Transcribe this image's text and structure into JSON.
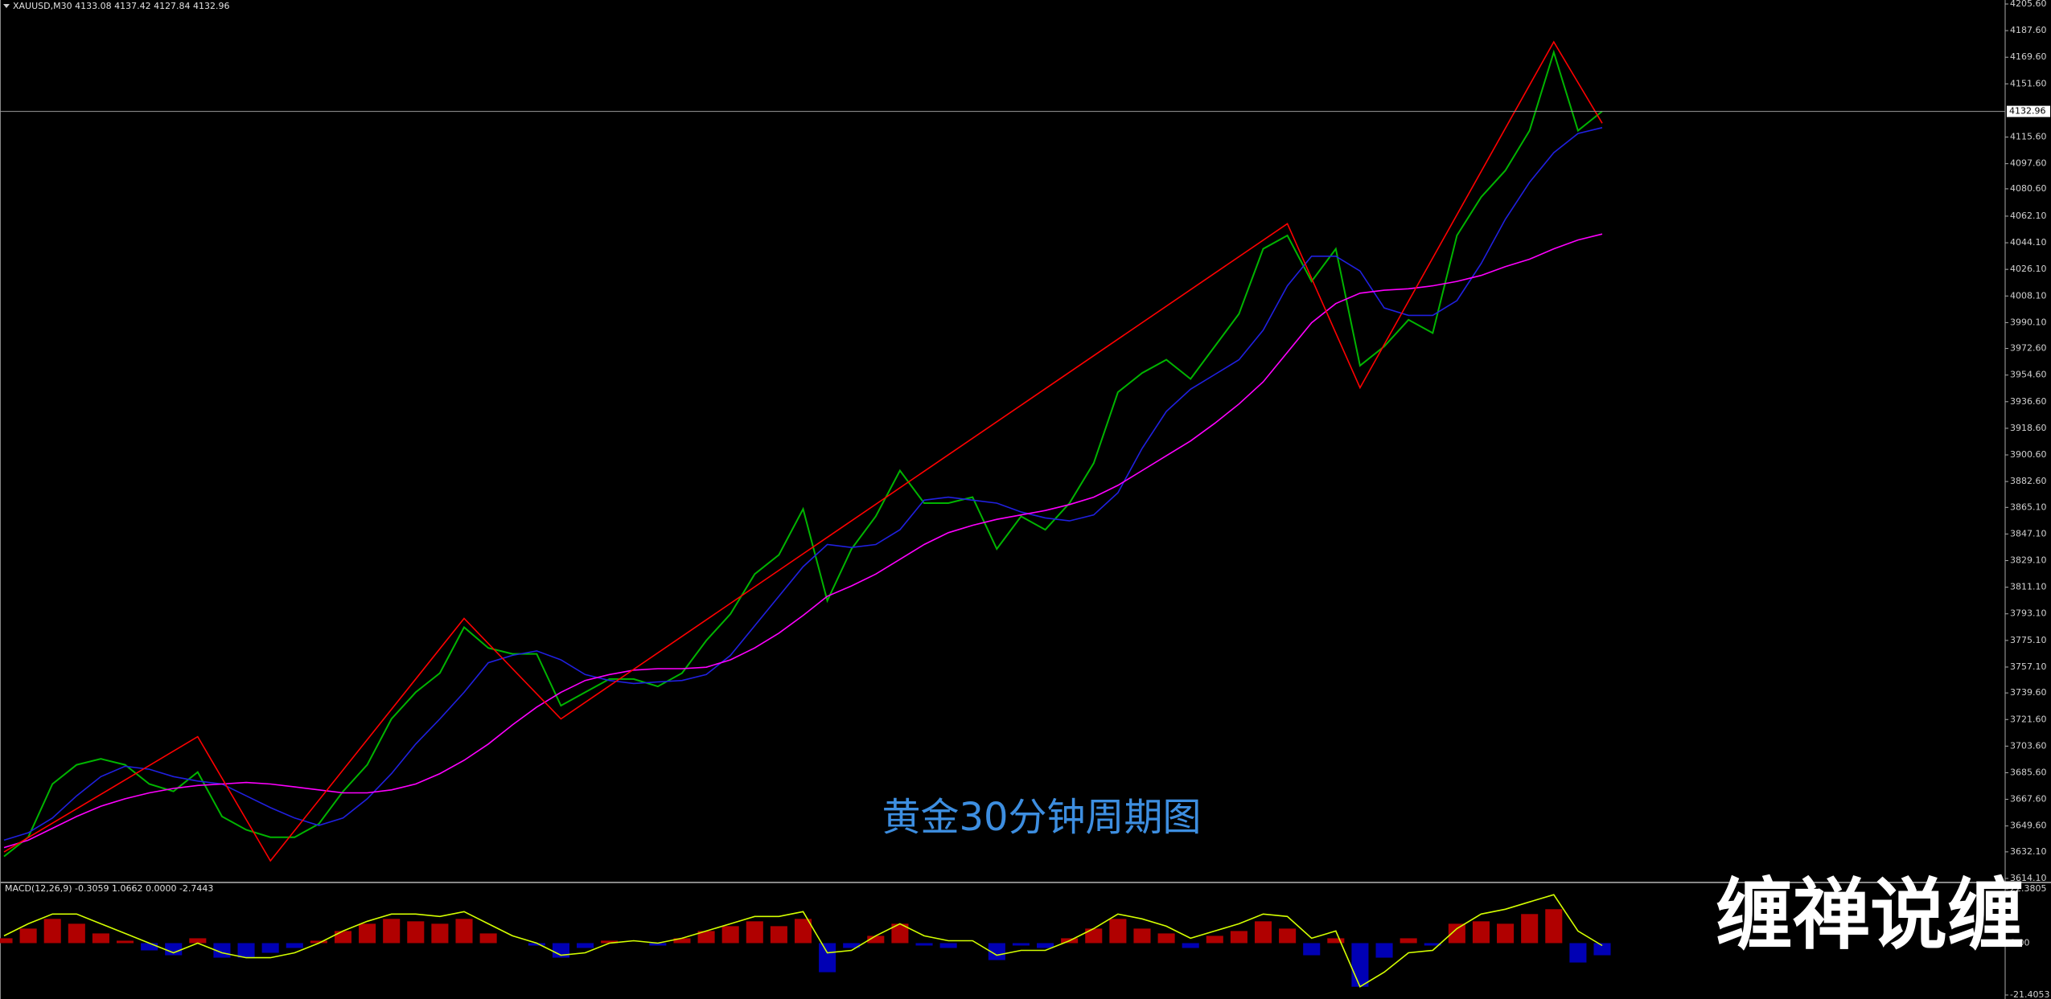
{
  "chart_data": [
    {
      "type": "line",
      "title": "XAUUSD,M30  4133.08 4137.42 4127.84 4132.96",
      "annotation": "黄金30分钟周期图",
      "ylim": [
        3614.1,
        4205.6
      ],
      "yticks": [
        {
          "value": 4205.6,
          "label": "4205.60"
        },
        {
          "value": 4187.6,
          "label": "4187.60"
        },
        {
          "value": 4169.6,
          "label": "4169.60"
        },
        {
          "value": 4151.6,
          "label": "4151.60"
        },
        {
          "value": 4115.6,
          "label": "4115.60"
        },
        {
          "value": 4097.6,
          "label": "4097.60"
        },
        {
          "value": 4080.6,
          "label": "4080.60"
        },
        {
          "value": 4062.1,
          "label": "4062.10"
        },
        {
          "value": 4044.1,
          "label": "4044.10"
        },
        {
          "value": 4026.1,
          "label": "4026.10"
        },
        {
          "value": 4008.1,
          "label": "4008.10"
        },
        {
          "value": 3990.1,
          "label": "3990.10"
        },
        {
          "value": 3972.6,
          "label": "3972.60"
        },
        {
          "value": 3954.6,
          "label": "3954.60"
        },
        {
          "value": 3936.6,
          "label": "3936.60"
        },
        {
          "value": 3918.6,
          "label": "3918.60"
        },
        {
          "value": 3900.6,
          "label": "3900.60"
        },
        {
          "value": 3882.6,
          "label": "3882.60"
        },
        {
          "value": 3865.1,
          "label": "3865.10"
        },
        {
          "value": 3847.1,
          "label": "3847.10"
        },
        {
          "value": 3829.1,
          "label": "3829.10"
        },
        {
          "value": 3811.1,
          "label": "3811.10"
        },
        {
          "value": 3793.1,
          "label": "3793.10"
        },
        {
          "value": 3775.1,
          "label": "3775.10"
        },
        {
          "value": 3757.1,
          "label": "3757.10"
        },
        {
          "value": 3739.6,
          "label": "3739.60"
        },
        {
          "value": 3721.6,
          "label": "3721.60"
        },
        {
          "value": 3703.6,
          "label": "3703.60"
        },
        {
          "value": 3685.6,
          "label": "3685.60"
        },
        {
          "value": 3667.6,
          "label": "3667.60"
        },
        {
          "value": 3649.6,
          "label": "3649.60"
        },
        {
          "value": 3632.1,
          "label": "3632.10"
        },
        {
          "value": 3614.1,
          "label": "3614.10"
        }
      ],
      "last_price": 4132.96,
      "series": [
        {
          "color": "#00b400",
          "values": [
            3629,
            3642,
            3678,
            3691,
            3695,
            3691,
            3678,
            3673,
            3686,
            3656,
            3647,
            3642,
            3642,
            3651,
            3673,
            3691,
            3722,
            3740,
            3753,
            3784,
            3770,
            3766,
            3766,
            3731,
            3740,
            3749,
            3749,
            3744,
            3753,
            3775,
            3793,
            3820,
            3833,
            3864,
            3802,
            3837,
            3859,
            3890,
            3868,
            3868,
            3872,
            3837,
            3859,
            3850,
            3868,
            3895,
            3943,
            3956,
            3965,
            3952,
            3974,
            3996,
            4040,
            4049,
            4018,
            4040,
            3961,
            3974,
            3992,
            3983,
            4049,
            4075,
            4093,
            4120,
            4173,
            4120,
            4133
          ]
        },
        {
          "color": "#2020e0",
          "values": [
            3640,
            3645,
            3655,
            3670,
            3683,
            3690,
            3688,
            3683,
            3680,
            3678,
            3670,
            3662,
            3655,
            3650,
            3655,
            3668,
            3685,
            3705,
            3722,
            3740,
            3760,
            3765,
            3768,
            3762,
            3752,
            3748,
            3746,
            3747,
            3748,
            3752,
            3765,
            3785,
            3805,
            3825,
            3840,
            3838,
            3840,
            3850,
            3870,
            3872,
            3870,
            3868,
            3862,
            3858,
            3856,
            3860,
            3875,
            3905,
            3930,
            3945,
            3955,
            3965,
            3985,
            4015,
            4035,
            4035,
            4025,
            4000,
            3995,
            3995,
            4005,
            4030,
            4060,
            4085,
            4105,
            4118,
            4122
          ]
        },
        {
          "color": "#ff00ff",
          "values": [
            3635,
            3640,
            3648,
            3656,
            3663,
            3668,
            3672,
            3675,
            3677,
            3678,
            3679,
            3678,
            3676,
            3674,
            3672,
            3672,
            3674,
            3678,
            3685,
            3694,
            3705,
            3718,
            3730,
            3740,
            3748,
            3752,
            3755,
            3756,
            3756,
            3757,
            3762,
            3770,
            3780,
            3792,
            3805,
            3812,
            3820,
            3830,
            3840,
            3848,
            3853,
            3857,
            3860,
            3863,
            3867,
            3872,
            3880,
            3890,
            3900,
            3910,
            3922,
            3935,
            3950,
            3970,
            3990,
            4003,
            4010,
            4012,
            4013,
            4015,
            4018,
            4022,
            4028,
            4033,
            4040,
            4046,
            4050
          ]
        },
        {
          "color": "#ff0000",
          "x": [
            0,
            8,
            11,
            19,
            23,
            53,
            56,
            64,
            66
          ],
          "values": [
            3632,
            3710,
            3626,
            3790,
            3722,
            4057,
            3946,
            4180,
            4125
          ]
        }
      ]
    },
    {
      "type": "macd",
      "title": "MACD(12,26,9) -0.3059 1.0662 0.0000 -2.7443",
      "ylim": [
        -21.4053,
        22.3805
      ],
      "yticks": [
        22.3805,
        {
          "value": 0,
          "label": "0.00"
        },
        -21.4053
      ],
      "series": [
        {
          "type": "bar",
          "color": "#b00000",
          "negative_color": "#0000b4",
          "values": [
            2,
            6,
            10,
            8,
            4,
            1,
            -3,
            -5,
            2,
            -6,
            -6,
            -4,
            -2,
            1,
            5,
            8,
            10,
            9,
            8,
            10,
            4,
            0,
            -1,
            -6,
            -2,
            1,
            0,
            -1,
            2,
            5,
            7,
            9,
            7,
            10,
            -12,
            -2,
            3,
            8,
            -1,
            -2,
            0,
            -7,
            -1,
            -2,
            2,
            6,
            10,
            6,
            4,
            -2,
            3,
            5,
            9,
            6,
            -5,
            2,
            -18,
            -6,
            2,
            -1,
            8,
            9,
            8,
            12,
            14,
            -8,
            -5
          ]
        },
        {
          "type": "line",
          "color": "#d4ff00",
          "values": [
            3,
            8,
            12,
            12,
            8,
            4,
            0,
            -4,
            0,
            -4,
            -6,
            -6,
            -4,
            0,
            5,
            9,
            12,
            12,
            11,
            13,
            8,
            3,
            0,
            -5,
            -4,
            0,
            1,
            0,
            2,
            5,
            8,
            11,
            11,
            13,
            -4,
            -3,
            3,
            8,
            3,
            1,
            1,
            -5,
            -3,
            -3,
            1,
            6,
            12,
            10,
            7,
            2,
            5,
            8,
            12,
            11,
            2,
            5,
            -18,
            -12,
            -4,
            -3,
            6,
            12,
            14,
            17,
            20,
            5,
            -1
          ]
        }
      ]
    }
  ],
  "watermark": "缠禅说缠"
}
